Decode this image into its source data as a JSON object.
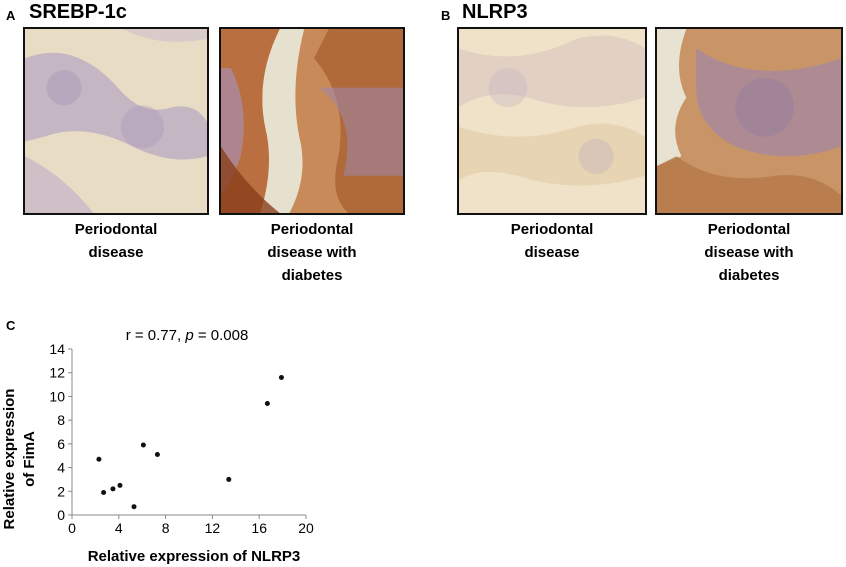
{
  "panel_a": {
    "letter": "A",
    "title": "SREBP-1c",
    "images": [
      {
        "caption_line1": "Periodontal",
        "caption_line2": "disease",
        "caption_line3": ""
      },
      {
        "caption_line1": "Periodontal",
        "caption_line2": "disease with",
        "caption_line3": "diabetes"
      }
    ]
  },
  "panel_b": {
    "letter": "B",
    "title": "NLRP3",
    "images": [
      {
        "caption_line1": "Periodontal",
        "caption_line2": "disease",
        "caption_line3": ""
      },
      {
        "caption_line1": "Periodontal",
        "caption_line2": "disease with",
        "caption_line3": "diabetes"
      }
    ]
  },
  "panel_c": {
    "letter": "C",
    "stat_r": "r = 0.77, ",
    "stat_p_symbol": "p",
    "stat_p_value": " = 0.008"
  },
  "chart_data": {
    "type": "scatter",
    "title": "",
    "xlabel": "Relative expression of NLRP3",
    "ylabel_line1": "Relative expression",
    "ylabel_line2": "of FimA",
    "xlim": [
      0,
      20
    ],
    "ylim": [
      0,
      14
    ],
    "xticks": [
      0,
      4,
      8,
      12,
      16,
      20
    ],
    "yticks": [
      0,
      2,
      4,
      6,
      8,
      10,
      12,
      14
    ],
    "grid": false,
    "points": [
      {
        "x": 2.3,
        "y": 4.7
      },
      {
        "x": 2.7,
        "y": 1.9
      },
      {
        "x": 3.5,
        "y": 2.2
      },
      {
        "x": 4.1,
        "y": 2.5
      },
      {
        "x": 5.3,
        "y": 0.7
      },
      {
        "x": 6.1,
        "y": 5.9
      },
      {
        "x": 7.3,
        "y": 5.1
      },
      {
        "x": 13.4,
        "y": 3.0
      },
      {
        "x": 16.7,
        "y": 9.4
      },
      {
        "x": 17.9,
        "y": 11.6
      }
    ],
    "point_color": "#111111"
  }
}
